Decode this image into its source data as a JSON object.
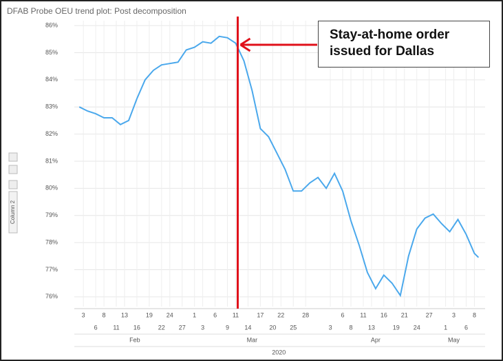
{
  "chart_data": {
    "type": "line",
    "title": "DFAB Probe OEU trend plot: Post decomposition",
    "y_label": "Column 2",
    "color": "#4aa8ec",
    "grid": true,
    "x": [
      33,
      35,
      37,
      39,
      41,
      43,
      45,
      47,
      49,
      51,
      53,
      55,
      57,
      59,
      61,
      63,
      65,
      67,
      69,
      71,
      73,
      75,
      77,
      79,
      81,
      83,
      85,
      87,
      89,
      91,
      93,
      95,
      97,
      99,
      101,
      103,
      105,
      107,
      109,
      111,
      113,
      115,
      117,
      119,
      121,
      123,
      125,
      127,
      129,
      130
    ],
    "values": [
      83.0,
      82.85,
      82.75,
      82.6,
      82.6,
      82.35,
      82.5,
      83.3,
      84.0,
      84.35,
      84.55,
      84.6,
      84.65,
      85.1,
      85.2,
      85.4,
      85.35,
      85.6,
      85.55,
      85.35,
      84.7,
      83.6,
      82.2,
      81.9,
      81.3,
      80.7,
      79.9,
      79.9,
      80.2,
      80.4,
      80.0,
      80.55,
      79.9,
      78.8,
      77.9,
      76.9,
      76.3,
      76.8,
      76.5,
      76.05,
      77.5,
      78.5,
      78.9,
      79.05,
      78.7,
      78.4,
      78.85,
      78.3,
      77.6,
      77.45
    ],
    "xlim": [
      31.8,
      131.6
    ],
    "xticks": [
      {
        "value": 34,
        "label": "3"
      },
      {
        "value": 37,
        "label": "6"
      },
      {
        "value": 39,
        "label": "8"
      },
      {
        "value": 42,
        "label": "11"
      },
      {
        "value": 44,
        "label": "13"
      },
      {
        "value": 47,
        "label": "16"
      },
      {
        "value": 50,
        "label": "19"
      },
      {
        "value": 53,
        "label": "22"
      },
      {
        "value": 55,
        "label": "24"
      },
      {
        "value": 58,
        "label": "27"
      },
      {
        "value": 61,
        "label": "1"
      },
      {
        "value": 63,
        "label": "3"
      },
      {
        "value": 66,
        "label": "6"
      },
      {
        "value": 69,
        "label": "9"
      },
      {
        "value": 71,
        "label": "11"
      },
      {
        "value": 74,
        "label": "14"
      },
      {
        "value": 77,
        "label": "17"
      },
      {
        "value": 80,
        "label": "20"
      },
      {
        "value": 82,
        "label": "22"
      },
      {
        "value": 85,
        "label": "25"
      },
      {
        "value": 88,
        "label": "28"
      },
      {
        "value": 94,
        "label": "3"
      },
      {
        "value": 97,
        "label": "6"
      },
      {
        "value": 99,
        "label": "8"
      },
      {
        "value": 102,
        "label": "11"
      },
      {
        "value": 104,
        "label": "13"
      },
      {
        "value": 107,
        "label": "16"
      },
      {
        "value": 110,
        "label": "19"
      },
      {
        "value": 112,
        "label": "21"
      },
      {
        "value": 115,
        "label": "24"
      },
      {
        "value": 118,
        "label": "27"
      },
      {
        "value": 122,
        "label": "1"
      },
      {
        "value": 124,
        "label": "3"
      },
      {
        "value": 127,
        "label": "6"
      },
      {
        "value": 129,
        "label": "8"
      }
    ],
    "month_labels": [
      {
        "value": 46.5,
        "label": "Feb"
      },
      {
        "value": 75,
        "label": "Mar"
      },
      {
        "value": 105,
        "label": "Apr"
      },
      {
        "value": 124,
        "label": "May"
      }
    ],
    "year_label": {
      "value": 81.5,
      "label": "2020"
    },
    "ylim": [
      75.64,
      86.18
    ],
    "yticks": [
      {
        "value": 76,
        "label": "76%"
      },
      {
        "value": 77,
        "label": "77%"
      },
      {
        "value": 78,
        "label": "78%"
      },
      {
        "value": 79,
        "label": "79%"
      },
      {
        "value": 80,
        "label": "80%"
      },
      {
        "value": 81,
        "label": "81%"
      },
      {
        "value": 82,
        "label": "82%"
      },
      {
        "value": 83,
        "label": "83%"
      },
      {
        "value": 84,
        "label": "84%"
      },
      {
        "value": 85,
        "label": "85%"
      },
      {
        "value": 86,
        "label": "86%"
      }
    ],
    "vline": {
      "x": 71.5,
      "color": "#e0101a"
    },
    "annotation": "Stay-at-home order issued for Dallas"
  }
}
